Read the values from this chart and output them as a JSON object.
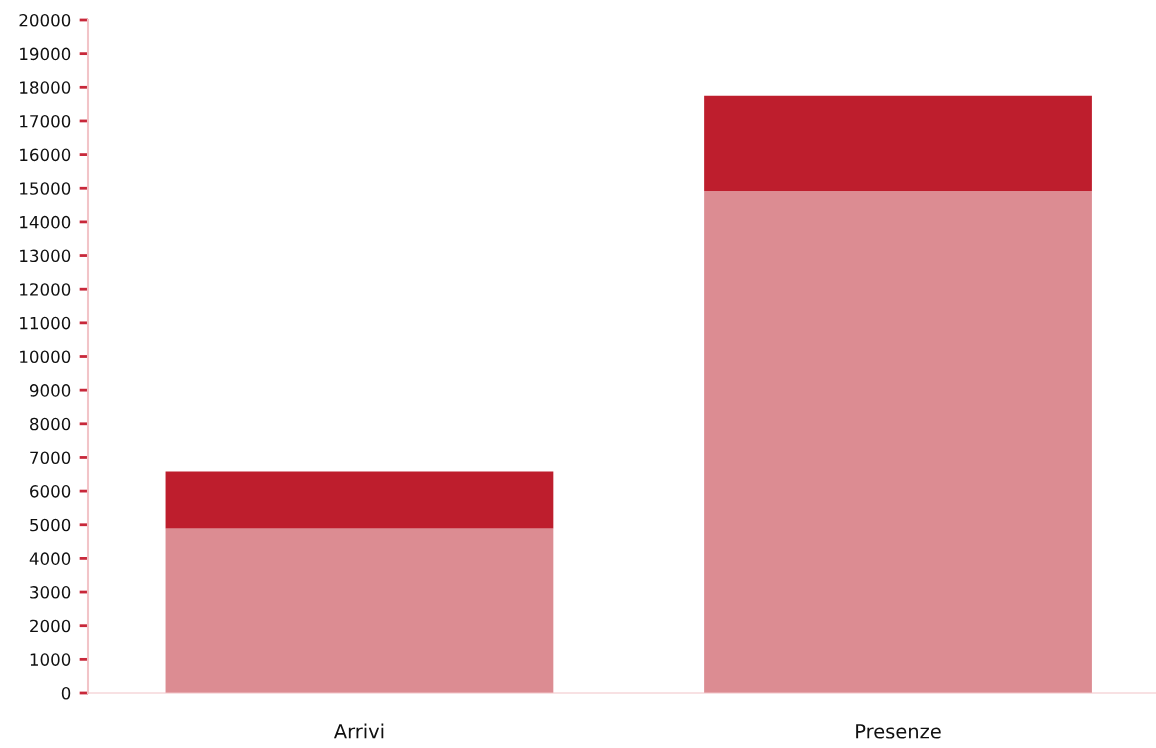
{
  "chart_data": {
    "type": "bar",
    "stacked": true,
    "categories": [
      "Arrivi",
      "Presenze"
    ],
    "series": [
      {
        "color": "#dc8c92",
        "values": [
          4890,
          14920
        ]
      },
      {
        "color": "#be1e2d",
        "values": [
          1690,
          2830
        ]
      }
    ],
    "ylim": [
      0,
      20000
    ],
    "yticks": [
      0,
      1000,
      2000,
      3000,
      4000,
      5000,
      6000,
      7000,
      8000,
      9000,
      10000,
      11000,
      12000,
      13000,
      14000,
      15000,
      16000,
      17000,
      18000,
      19000,
      20000
    ],
    "grid": false
  }
}
